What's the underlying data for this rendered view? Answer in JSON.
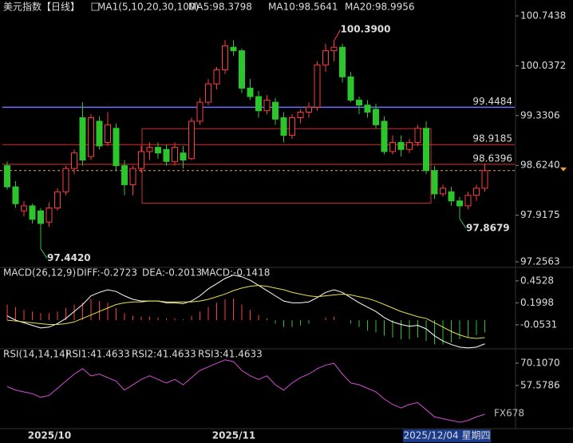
{
  "chart_data": [
    {
      "type": "candlestick",
      "title": "美元指数【日线】",
      "legend": [
        {
          "text": "MA1(5,10,20,30,100)",
          "color": "#dddddd"
        },
        {
          "text": "MA5:98.3798",
          "color": "#ffffff"
        },
        {
          "text": "MA10:98.5641",
          "color": "#e8e04a"
        },
        {
          "text": "MA20:98.9956",
          "color": "#d24fd2"
        }
      ],
      "ylim": [
        97.2,
        100.97
      ],
      "yticks": [
        100.7438,
        100.0372,
        99.3306,
        {
          "value": 98.624,
          "label": "98.6240"
        },
        97.9175,
        97.2563
      ],
      "open": [
        98.62,
        98.32,
        97.98,
        98.05,
        97.98,
        97.82,
        98.02,
        98.25,
        98.58,
        99.3,
        98.75,
        99.25,
        98.95,
        99.15,
        98.62,
        98.35,
        98.58,
        98.82,
        98.88,
        98.85,
        98.68,
        98.8,
        98.72,
        99.25,
        99.52,
        99.78,
        99.98,
        100.3,
        100.25,
        99.72,
        99.6,
        99.4,
        99.52,
        99.3,
        99.05,
        99.3,
        99.38,
        99.45,
        100.05,
        100.25,
        100.3,
        99.88,
        99.55,
        99.48,
        99.42,
        99.25,
        98.82,
        98.95,
        98.85,
        98.95,
        99.15,
        98.55,
        98.22,
        98.25,
        98.12,
        98.05,
        98.2,
        98.3
      ],
      "high": [
        98.68,
        98.4,
        98.12,
        98.08,
        98.02,
        98.1,
        98.3,
        98.62,
        98.85,
        99.52,
        99.35,
        99.32,
        99.38,
        99.22,
        98.7,
        98.62,
        98.9,
        98.95,
        98.95,
        98.92,
        98.95,
        98.9,
        99.3,
        99.58,
        99.85,
        100.02,
        100.4,
        100.4,
        100.28,
        99.85,
        99.68,
        99.62,
        99.58,
        99.38,
        99.35,
        99.42,
        99.52,
        100.1,
        100.35,
        100.39,
        100.35,
        99.95,
        99.6,
        99.55,
        99.5,
        99.32,
        99.05,
        99.05,
        99.0,
        99.2,
        99.25,
        98.62,
        98.35,
        98.32,
        98.18,
        98.25,
        98.35,
        98.65
      ],
      "low": [
        98.28,
        98.02,
        97.9,
        97.8,
        97.442,
        97.75,
        97.98,
        98.2,
        98.5,
        98.62,
        98.7,
        98.85,
        98.9,
        98.55,
        98.2,
        98.2,
        98.52,
        98.7,
        98.72,
        98.62,
        98.62,
        98.58,
        98.7,
        99.2,
        99.48,
        99.7,
        99.92,
        100.18,
        99.65,
        99.55,
        99.3,
        99.35,
        99.2,
        98.95,
        99.0,
        99.22,
        99.3,
        99.4,
        99.95,
        100.1,
        99.8,
        99.52,
        99.35,
        99.3,
        99.15,
        98.78,
        98.78,
        98.75,
        98.8,
        98.9,
        98.5,
        98.15,
        98.18,
        98.05,
        97.8679,
        98.0,
        98.12,
        98.25
      ],
      "close": [
        98.32,
        98.08,
        98.05,
        97.86,
        97.8,
        98.02,
        98.25,
        98.58,
        98.8,
        98.7,
        99.3,
        98.9,
        99.2,
        98.62,
        98.35,
        98.58,
        98.82,
        98.88,
        98.8,
        98.68,
        98.88,
        98.7,
        99.25,
        99.52,
        99.78,
        99.98,
        100.32,
        100.25,
        99.72,
        99.6,
        99.4,
        99.55,
        99.28,
        99.05,
        99.3,
        99.38,
        99.45,
        100.05,
        100.25,
        100.3,
        99.88,
        99.55,
        99.48,
        99.38,
        99.2,
        98.82,
        98.95,
        98.85,
        98.95,
        99.15,
        98.55,
        98.22,
        98.3,
        98.12,
        98.05,
        98.2,
        98.3,
        98.55
      ],
      "levels": [
        {
          "value": 99.4484,
          "color": "#7070ff"
        },
        {
          "value": 98.9185,
          "color": "#e03030"
        },
        {
          "value": 98.6396,
          "color": "#e03030"
        }
      ],
      "zone": [
        98.09,
        99.145
      ],
      "annotations": [
        {
          "value": 100.39,
          "label": "100.3900",
          "kind": "high",
          "color": "#ff4040"
        },
        {
          "value": 97.442,
          "label": "97.4420",
          "kind": "low",
          "color": "#3ed13e"
        },
        {
          "value": 97.8679,
          "kind": "low",
          "color": "#3ed13e"
        }
      ],
      "x_labels": [
        "2025/10",
        "2025/11"
      ],
      "cursor_label": "2025/12/04 星期四",
      "watermark": "FX678"
    },
    {
      "type": "macd",
      "title": "MACD(26,12,9)",
      "legend": [
        {
          "text": "DIFF:-0.2723",
          "color": "#ffffff"
        },
        {
          "text": "DEA:-0.2013",
          "color": "#e8e04a"
        },
        {
          "text": "MACD:-0.1418",
          "color": "#d24fd2"
        }
      ],
      "ylim": [
        -0.33,
        0.58
      ],
      "yticks": [
        0.4528,
        0.1998,
        -0.0531
      ],
      "histogram": [
        0.18,
        0.15,
        0.12,
        0.1,
        0.08,
        0.08,
        0.1,
        0.14,
        0.18,
        0.2,
        0.24,
        0.22,
        0.2,
        0.14,
        0.08,
        0.05,
        0.04,
        0.04,
        0.03,
        0.02,
        0.02,
        0.01,
        0.05,
        0.1,
        0.15,
        0.2,
        0.24,
        0.25,
        0.18,
        0.12,
        0.06,
        0.02,
        -0.04,
        -0.08,
        -0.08,
        -0.06,
        -0.04,
        0.0,
        0.03,
        0.04,
        0.0,
        -0.04,
        -0.08,
        -0.12,
        -0.14,
        -0.18,
        -0.2,
        -0.22,
        -0.22,
        -0.2,
        -0.24,
        -0.28,
        -0.28,
        -0.26,
        -0.22,
        -0.2,
        -0.17,
        -0.1418
      ],
      "dif": [
        0.05,
        0.0,
        -0.03,
        -0.06,
        -0.09,
        -0.08,
        -0.04,
        0.02,
        0.1,
        0.18,
        0.28,
        0.32,
        0.35,
        0.33,
        0.28,
        0.24,
        0.22,
        0.22,
        0.22,
        0.2,
        0.2,
        0.19,
        0.22,
        0.28,
        0.36,
        0.42,
        0.48,
        0.52,
        0.5,
        0.46,
        0.4,
        0.34,
        0.28,
        0.22,
        0.2,
        0.2,
        0.21,
        0.26,
        0.32,
        0.35,
        0.32,
        0.26,
        0.2,
        0.15,
        0.1,
        0.03,
        -0.02,
        -0.05,
        -0.07,
        -0.06,
        -0.1,
        -0.18,
        -0.24,
        -0.28,
        -0.31,
        -0.32,
        -0.31,
        -0.2723
      ],
      "dea": [
        0.0,
        -0.01,
        -0.02,
        -0.03,
        -0.04,
        -0.05,
        -0.05,
        -0.04,
        -0.02,
        0.02,
        0.06,
        0.1,
        0.14,
        0.18,
        0.2,
        0.21,
        0.21,
        0.22,
        0.22,
        0.21,
        0.21,
        0.21,
        0.21,
        0.22,
        0.24,
        0.27,
        0.3,
        0.34,
        0.37,
        0.39,
        0.4,
        0.39,
        0.37,
        0.35,
        0.32,
        0.3,
        0.28,
        0.27,
        0.28,
        0.29,
        0.3,
        0.29,
        0.27,
        0.25,
        0.22,
        0.18,
        0.14,
        0.1,
        0.07,
        0.04,
        0.02,
        -0.03,
        -0.08,
        -0.13,
        -0.17,
        -0.2,
        -0.21,
        -0.2013
      ]
    },
    {
      "type": "rsi",
      "title": "RSI(14,14,14)",
      "legend": [
        {
          "text": "RSI1:41.4633",
          "color": "#ffffff"
        },
        {
          "text": "RSI2:41.4633",
          "color": "#e8e04a"
        },
        {
          "text": "RSI3:41.4633",
          "color": "#d24fd2"
        }
      ],
      "ylim": [
        34.3,
        76.8
      ],
      "yticks": [
        {
          "value": 70.107,
          "label": "70.1070"
        },
        57.5786
      ],
      "color": "#d24fd2",
      "values": [
        57,
        55,
        54,
        53,
        51,
        52,
        56,
        60,
        64,
        67,
        63,
        64,
        62,
        60,
        55,
        58,
        61,
        63,
        61,
        59,
        61,
        58,
        62,
        66,
        68,
        70,
        72,
        71,
        66,
        63,
        61,
        63,
        58,
        55,
        59,
        62,
        64,
        67,
        69,
        70,
        64,
        59,
        58,
        56,
        54,
        50,
        47,
        45,
        47,
        48,
        44,
        40,
        39,
        38,
        37,
        38,
        40,
        41.4633
      ]
    }
  ]
}
